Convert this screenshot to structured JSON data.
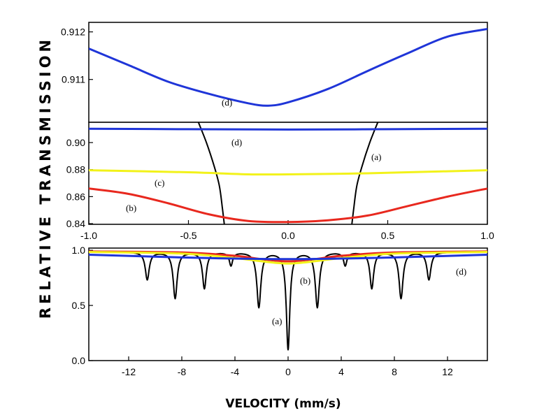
{
  "chart_data": [
    {
      "type": "line",
      "panel": "top",
      "ylim": [
        0.9101,
        0.9122
      ],
      "xlim": [
        -1.0,
        1.0
      ],
      "yticks": [
        0.911,
        0.912
      ],
      "ytick_labels": [
        "0.911",
        "0.912"
      ],
      "series": [
        {
          "name": "(d)",
          "label": "(d)",
          "color": "#1f35d8",
          "x": [
            -1.0,
            -0.8,
            -0.6,
            -0.4,
            -0.2,
            -0.1,
            0.0,
            0.2,
            0.4,
            0.6,
            0.8,
            1.0
          ],
          "y": [
            0.91165,
            0.9113,
            0.91095,
            0.9107,
            0.9105,
            0.91045,
            0.91052,
            0.9108,
            0.91118,
            0.91155,
            0.9119,
            0.91206
          ]
        }
      ]
    },
    {
      "type": "line",
      "panel": "middle",
      "xlim": [
        -1.0,
        1.0
      ],
      "ylim": [
        0.8395,
        0.915
      ],
      "xticks": [
        -1.0,
        -0.5,
        0.0,
        0.5,
        1.0
      ],
      "xtick_labels": [
        "-1.0",
        "-0.5",
        "0.0",
        "0.5",
        "1.0"
      ],
      "yticks": [
        0.84,
        0.86,
        0.88,
        0.9
      ],
      "ytick_labels": [
        "0.84",
        "0.86",
        "0.88",
        "0.90"
      ],
      "series": [
        {
          "name": "(a)",
          "label": "(a)",
          "color": "#000000",
          "x": [
            -0.45,
            -0.41,
            -0.37,
            -0.345,
            -0.33,
            -0.32
          ],
          "y": [
            0.915,
            0.9,
            0.882,
            0.868,
            0.852,
            0.8395
          ]
        },
        {
          "name": "(a)",
          "label": "(a)",
          "color": "#000000",
          "x": [
            0.32,
            0.33,
            0.345,
            0.37,
            0.41,
            0.45
          ],
          "y": [
            0.8395,
            0.852,
            0.868,
            0.882,
            0.9,
            0.915
          ]
        },
        {
          "name": "(b)",
          "label": "(b)",
          "color": "#e8281e",
          "x": [
            -1.0,
            -0.8,
            -0.6,
            -0.4,
            -0.2,
            0.0,
            0.2,
            0.4,
            0.6,
            0.8,
            1.0
          ],
          "y": [
            0.866,
            0.862,
            0.855,
            0.847,
            0.842,
            0.8412,
            0.8425,
            0.846,
            0.853,
            0.86,
            0.866
          ]
        },
        {
          "name": "(c)",
          "label": "(c)",
          "color": "#f2f21a",
          "x": [
            -1.0,
            -0.5,
            -0.2,
            0.0,
            0.3,
            0.6,
            1.0
          ],
          "y": [
            0.8795,
            0.878,
            0.8765,
            0.8765,
            0.877,
            0.878,
            0.8795
          ]
        },
        {
          "name": "(d)",
          "label": "(d)",
          "color": "#1f35d8",
          "x": [
            -1.0,
            -0.5,
            0.0,
            0.5,
            1.0
          ],
          "y": [
            0.9102,
            0.9099,
            0.9096,
            0.9099,
            0.9102
          ]
        }
      ]
    },
    {
      "type": "line",
      "panel": "bottom",
      "xlim": [
        -15.0,
        15.0
      ],
      "ylim": [
        0.0,
        1.02
      ],
      "xticks": [
        -12,
        -8,
        -4,
        0,
        4,
        8,
        12
      ],
      "xtick_labels": [
        "-12",
        "-8",
        "-4",
        "0",
        "4",
        "8",
        "12"
      ],
      "yticks": [
        0.0,
        0.5,
        1.0
      ],
      "ytick_labels": [
        "0.0",
        "0.5",
        "1.0"
      ],
      "baseline": 0.985,
      "sextets": [
        {
          "center": 0.0,
          "split": 10.6,
          "depth": 0.25,
          "width": 0.18
        },
        {
          "center": 0.0,
          "split": 8.5,
          "depth": 0.42,
          "width": 0.18
        },
        {
          "center": 0.0,
          "split": 6.3,
          "depth": 0.33,
          "width": 0.17
        },
        {
          "center": 0.0,
          "split": 4.3,
          "depth": 0.12,
          "width": 0.15
        },
        {
          "center": 0.0,
          "split": 2.2,
          "depth": 0.5,
          "width": 0.18
        },
        {
          "center": 0.0,
          "split": 0.0,
          "depth": 0.88,
          "width": 0.16
        }
      ],
      "series": [
        {
          "name": "(a)",
          "label": "(a)",
          "color": "#000000",
          "profile": "sextets"
        },
        {
          "name": "(b)",
          "label": "(b)",
          "color": "#e8281e",
          "x": [
            -15,
            -8,
            -4,
            -2,
            0,
            2,
            4,
            8,
            15
          ],
          "y": [
            0.99,
            0.98,
            0.95,
            0.92,
            0.9,
            0.92,
            0.95,
            0.98,
            0.99
          ]
        },
        {
          "name": "(c)",
          "label": "(c)",
          "color": "#f2f21a",
          "x": [
            -15,
            -8,
            -4,
            -2,
            0,
            2,
            4,
            8,
            15
          ],
          "y": [
            0.985,
            0.97,
            0.93,
            0.9,
            0.88,
            0.9,
            0.93,
            0.97,
            0.985
          ]
        },
        {
          "name": "(d)",
          "label": "(d)",
          "color": "#1f35d8",
          "x": [
            -15,
            -8,
            -4,
            0,
            4,
            8,
            15
          ],
          "y": [
            0.96,
            0.935,
            0.925,
            0.92,
            0.925,
            0.935,
            0.96
          ]
        }
      ]
    }
  ],
  "labels": {
    "ylabel": "RELATIVE TRANSMISSION",
    "xlabel": "VELOCITY (mm/s)",
    "top_d": "(d)",
    "mid_d": "(d)",
    "mid_a": "(a)",
    "mid_c": "(c)",
    "mid_b": "(b)",
    "bot_b": "(b)",
    "bot_a": "(a)",
    "bot_d": "(d)"
  }
}
